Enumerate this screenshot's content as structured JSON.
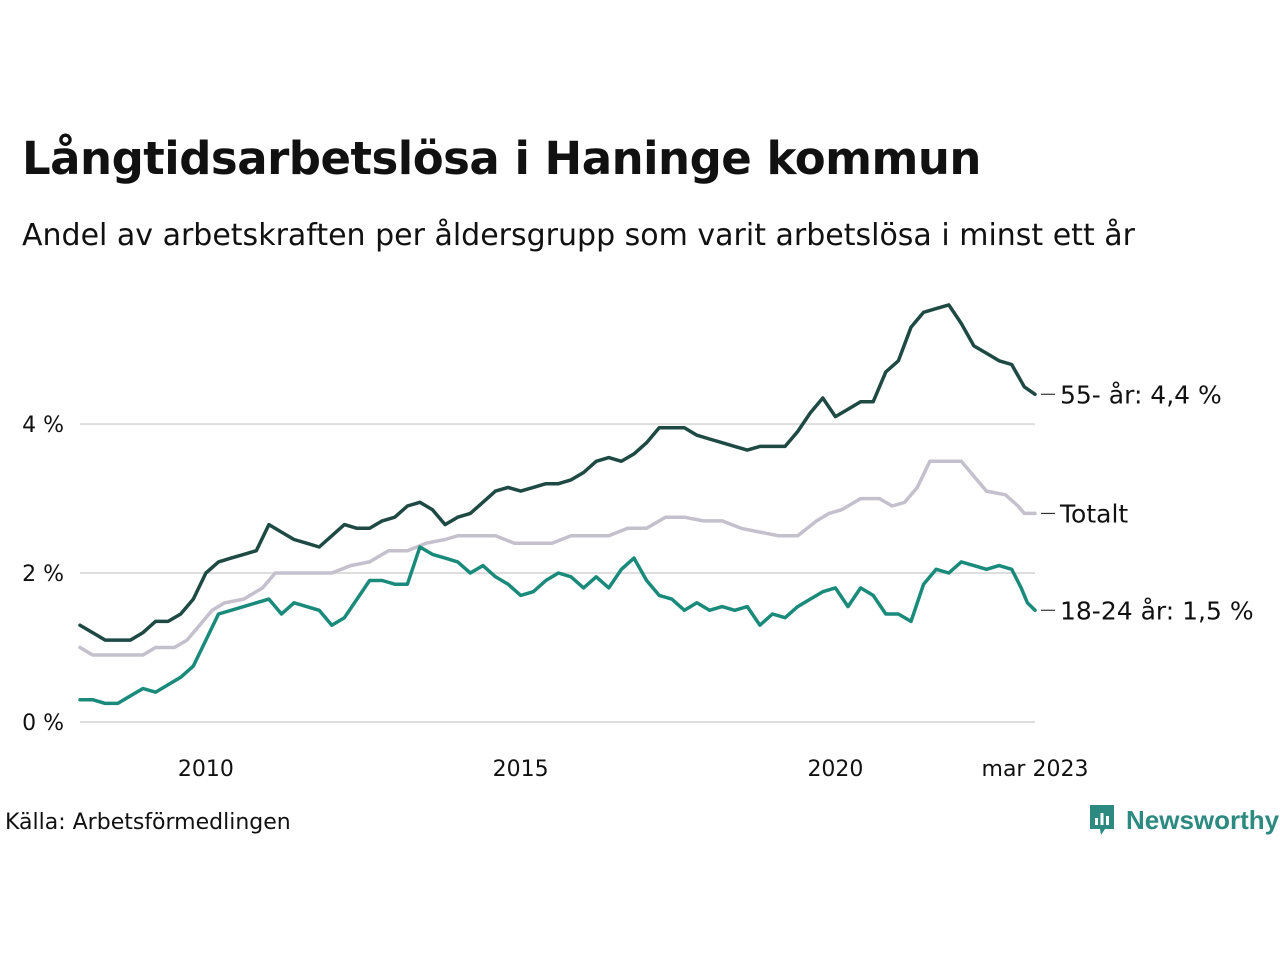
{
  "title": "Långtidsarbetslösa i Haninge kommun",
  "subtitle": "Andel av arbetskraften per åldersgrupp som varit arbetslösa i minst ett år",
  "source": "Källa: Arbetsförmedlingen",
  "brand": "Newsworthy",
  "colors": {
    "grid": "#dedede",
    "brand": "#2d8a80"
  },
  "chart_data": {
    "type": "line",
    "ylim": [
      0,
      5.8
    ],
    "xlim": [
      2008.0,
      2023.17
    ],
    "grid": true,
    "y_ticks": [
      {
        "value": 0,
        "label": "0 %"
      },
      {
        "value": 2,
        "label": "2 %"
      },
      {
        "value": 4,
        "label": "4 %"
      }
    ],
    "x_ticks": [
      {
        "value": 2010,
        "label": "2010"
      },
      {
        "value": 2015,
        "label": "2015"
      },
      {
        "value": 2020,
        "label": "2020"
      },
      {
        "value": 2023.17,
        "label": "mar 2023"
      }
    ],
    "series": [
      {
        "name": "55- år",
        "end_label": "55- år: 4,4 %",
        "color": "#1e4a43",
        "points": [
          [
            2008.0,
            1.3
          ],
          [
            2008.2,
            1.2
          ],
          [
            2008.4,
            1.1
          ],
          [
            2008.6,
            1.1
          ],
          [
            2008.8,
            1.1
          ],
          [
            2009.0,
            1.2
          ],
          [
            2009.2,
            1.35
          ],
          [
            2009.4,
            1.35
          ],
          [
            2009.6,
            1.45
          ],
          [
            2009.8,
            1.65
          ],
          [
            2010.0,
            2.0
          ],
          [
            2010.2,
            2.15
          ],
          [
            2010.4,
            2.2
          ],
          [
            2010.6,
            2.25
          ],
          [
            2010.8,
            2.3
          ],
          [
            2011.0,
            2.65
          ],
          [
            2011.2,
            2.55
          ],
          [
            2011.4,
            2.45
          ],
          [
            2011.6,
            2.4
          ],
          [
            2011.8,
            2.35
          ],
          [
            2012.0,
            2.5
          ],
          [
            2012.2,
            2.65
          ],
          [
            2012.4,
            2.6
          ],
          [
            2012.6,
            2.6
          ],
          [
            2012.8,
            2.7
          ],
          [
            2013.0,
            2.75
          ],
          [
            2013.2,
            2.9
          ],
          [
            2013.4,
            2.95
          ],
          [
            2013.6,
            2.85
          ],
          [
            2013.8,
            2.65
          ],
          [
            2014.0,
            2.75
          ],
          [
            2014.2,
            2.8
          ],
          [
            2014.4,
            2.95
          ],
          [
            2014.6,
            3.1
          ],
          [
            2014.8,
            3.15
          ],
          [
            2015.0,
            3.1
          ],
          [
            2015.2,
            3.15
          ],
          [
            2015.4,
            3.2
          ],
          [
            2015.6,
            3.2
          ],
          [
            2015.8,
            3.25
          ],
          [
            2016.0,
            3.35
          ],
          [
            2016.2,
            3.5
          ],
          [
            2016.4,
            3.55
          ],
          [
            2016.6,
            3.5
          ],
          [
            2016.8,
            3.6
          ],
          [
            2017.0,
            3.75
          ],
          [
            2017.2,
            3.95
          ],
          [
            2017.4,
            3.95
          ],
          [
            2017.6,
            3.95
          ],
          [
            2017.8,
            3.85
          ],
          [
            2018.0,
            3.8
          ],
          [
            2018.2,
            3.75
          ],
          [
            2018.4,
            3.7
          ],
          [
            2018.6,
            3.65
          ],
          [
            2018.8,
            3.7
          ],
          [
            2019.0,
            3.7
          ],
          [
            2019.2,
            3.7
          ],
          [
            2019.4,
            3.9
          ],
          [
            2019.6,
            4.15
          ],
          [
            2019.8,
            4.35
          ],
          [
            2020.0,
            4.1
          ],
          [
            2020.2,
            4.2
          ],
          [
            2020.4,
            4.3
          ],
          [
            2020.6,
            4.3
          ],
          [
            2020.8,
            4.7
          ],
          [
            2021.0,
            4.85
          ],
          [
            2021.2,
            5.3
          ],
          [
            2021.4,
            5.5
          ],
          [
            2021.6,
            5.55
          ],
          [
            2021.8,
            5.6
          ],
          [
            2022.0,
            5.35
          ],
          [
            2022.2,
            5.05
          ],
          [
            2022.4,
            4.95
          ],
          [
            2022.6,
            4.85
          ],
          [
            2022.8,
            4.8
          ],
          [
            2023.0,
            4.5
          ],
          [
            2023.17,
            4.4
          ]
        ]
      },
      {
        "name": "Totalt",
        "end_label": "Totalt",
        "color": "#c4c0cc",
        "points": [
          [
            2008.0,
            1.0
          ],
          [
            2008.2,
            0.9
          ],
          [
            2008.5,
            0.9
          ],
          [
            2008.8,
            0.9
          ],
          [
            2009.0,
            0.9
          ],
          [
            2009.2,
            1.0
          ],
          [
            2009.5,
            1.0
          ],
          [
            2009.7,
            1.1
          ],
          [
            2009.9,
            1.3
          ],
          [
            2010.1,
            1.5
          ],
          [
            2010.3,
            1.6
          ],
          [
            2010.6,
            1.65
          ],
          [
            2010.9,
            1.8
          ],
          [
            2011.1,
            2.0
          ],
          [
            2011.4,
            2.0
          ],
          [
            2011.8,
            2.0
          ],
          [
            2012.0,
            2.0
          ],
          [
            2012.3,
            2.1
          ],
          [
            2012.6,
            2.15
          ],
          [
            2012.9,
            2.3
          ],
          [
            2013.2,
            2.3
          ],
          [
            2013.5,
            2.4
          ],
          [
            2013.8,
            2.45
          ],
          [
            2014.0,
            2.5
          ],
          [
            2014.3,
            2.5
          ],
          [
            2014.6,
            2.5
          ],
          [
            2014.9,
            2.4
          ],
          [
            2015.2,
            2.4
          ],
          [
            2015.5,
            2.4
          ],
          [
            2015.8,
            2.5
          ],
          [
            2016.0,
            2.5
          ],
          [
            2016.4,
            2.5
          ],
          [
            2016.7,
            2.6
          ],
          [
            2017.0,
            2.6
          ],
          [
            2017.3,
            2.75
          ],
          [
            2017.6,
            2.75
          ],
          [
            2017.9,
            2.7
          ],
          [
            2018.2,
            2.7
          ],
          [
            2018.5,
            2.6
          ],
          [
            2018.8,
            2.55
          ],
          [
            2019.1,
            2.5
          ],
          [
            2019.4,
            2.5
          ],
          [
            2019.7,
            2.7
          ],
          [
            2019.9,
            2.8
          ],
          [
            2020.1,
            2.85
          ],
          [
            2020.4,
            3.0
          ],
          [
            2020.7,
            3.0
          ],
          [
            2020.9,
            2.9
          ],
          [
            2021.1,
            2.95
          ],
          [
            2021.3,
            3.15
          ],
          [
            2021.5,
            3.5
          ],
          [
            2021.8,
            3.5
          ],
          [
            2022.0,
            3.5
          ],
          [
            2022.2,
            3.3
          ],
          [
            2022.4,
            3.1
          ],
          [
            2022.7,
            3.05
          ],
          [
            2022.9,
            2.9
          ],
          [
            2023.0,
            2.8
          ],
          [
            2023.17,
            2.8
          ]
        ]
      },
      {
        "name": "18-24 år",
        "end_label": "18-24 år: 1,5 %",
        "color": "#1a8a7a",
        "points": [
          [
            2008.0,
            0.3
          ],
          [
            2008.2,
            0.3
          ],
          [
            2008.4,
            0.25
          ],
          [
            2008.6,
            0.25
          ],
          [
            2008.8,
            0.35
          ],
          [
            2009.0,
            0.45
          ],
          [
            2009.2,
            0.4
          ],
          [
            2009.4,
            0.5
          ],
          [
            2009.6,
            0.6
          ],
          [
            2009.8,
            0.75
          ],
          [
            2010.0,
            1.1
          ],
          [
            2010.2,
            1.45
          ],
          [
            2010.4,
            1.5
          ],
          [
            2010.6,
            1.55
          ],
          [
            2010.8,
            1.6
          ],
          [
            2011.0,
            1.65
          ],
          [
            2011.2,
            1.45
          ],
          [
            2011.4,
            1.6
          ],
          [
            2011.6,
            1.55
          ],
          [
            2011.8,
            1.5
          ],
          [
            2012.0,
            1.3
          ],
          [
            2012.2,
            1.4
          ],
          [
            2012.4,
            1.65
          ],
          [
            2012.6,
            1.9
          ],
          [
            2012.8,
            1.9
          ],
          [
            2013.0,
            1.85
          ],
          [
            2013.2,
            1.85
          ],
          [
            2013.4,
            2.35
          ],
          [
            2013.6,
            2.25
          ],
          [
            2013.8,
            2.2
          ],
          [
            2014.0,
            2.15
          ],
          [
            2014.2,
            2.0
          ],
          [
            2014.4,
            2.1
          ],
          [
            2014.6,
            1.95
          ],
          [
            2014.8,
            1.85
          ],
          [
            2015.0,
            1.7
          ],
          [
            2015.2,
            1.75
          ],
          [
            2015.4,
            1.9
          ],
          [
            2015.6,
            2.0
          ],
          [
            2015.8,
            1.95
          ],
          [
            2016.0,
            1.8
          ],
          [
            2016.2,
            1.95
          ],
          [
            2016.4,
            1.8
          ],
          [
            2016.6,
            2.05
          ],
          [
            2016.8,
            2.2
          ],
          [
            2017.0,
            1.9
          ],
          [
            2017.2,
            1.7
          ],
          [
            2017.4,
            1.65
          ],
          [
            2017.6,
            1.5
          ],
          [
            2017.8,
            1.6
          ],
          [
            2018.0,
            1.5
          ],
          [
            2018.2,
            1.55
          ],
          [
            2018.4,
            1.5
          ],
          [
            2018.6,
            1.55
          ],
          [
            2018.8,
            1.3
          ],
          [
            2019.0,
            1.45
          ],
          [
            2019.2,
            1.4
          ],
          [
            2019.4,
            1.55
          ],
          [
            2019.6,
            1.65
          ],
          [
            2019.8,
            1.75
          ],
          [
            2020.0,
            1.8
          ],
          [
            2020.2,
            1.55
          ],
          [
            2020.4,
            1.8
          ],
          [
            2020.6,
            1.7
          ],
          [
            2020.8,
            1.45
          ],
          [
            2021.0,
            1.45
          ],
          [
            2021.2,
            1.35
          ],
          [
            2021.4,
            1.85
          ],
          [
            2021.6,
            2.05
          ],
          [
            2021.8,
            2.0
          ],
          [
            2022.0,
            2.15
          ],
          [
            2022.2,
            2.1
          ],
          [
            2022.4,
            2.05
          ],
          [
            2022.6,
            2.1
          ],
          [
            2022.8,
            2.05
          ],
          [
            2022.95,
            1.8
          ],
          [
            2023.05,
            1.6
          ],
          [
            2023.17,
            1.5
          ]
        ]
      }
    ]
  }
}
